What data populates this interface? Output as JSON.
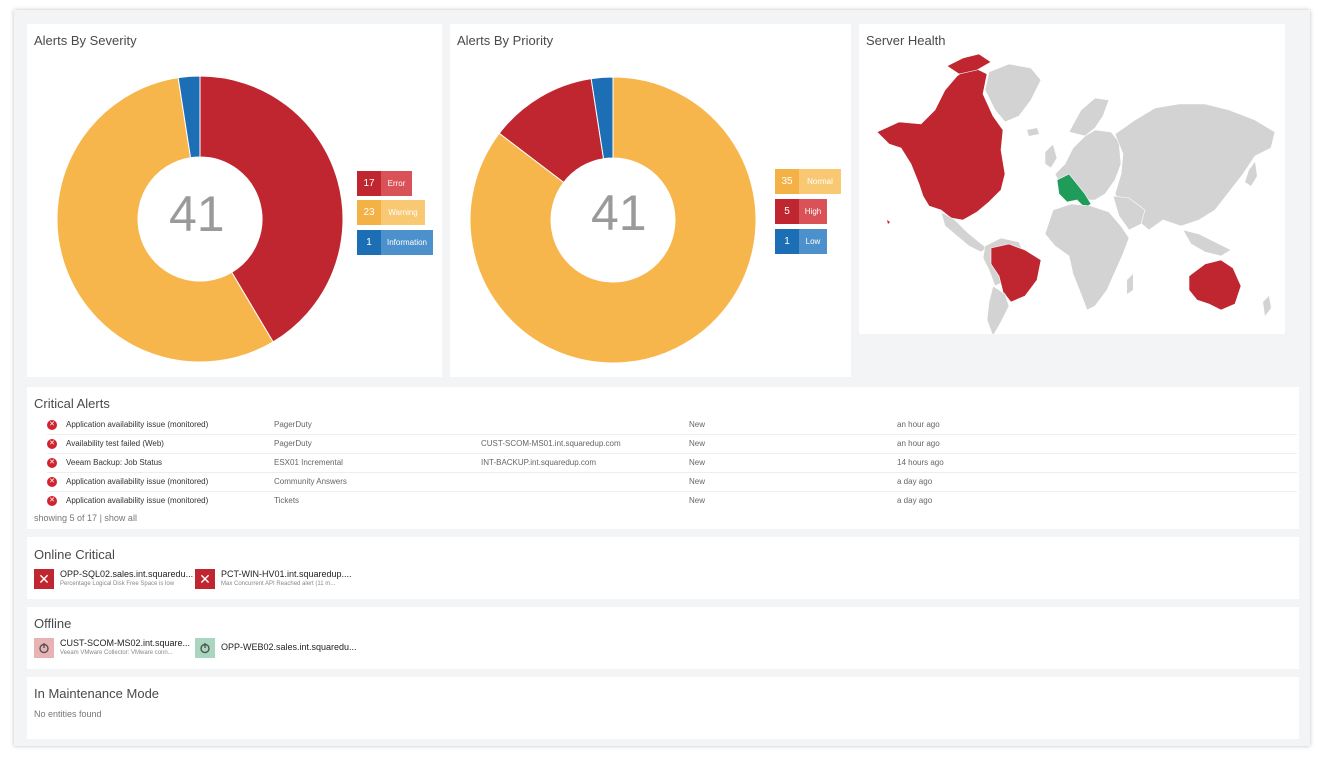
{
  "severity": {
    "title": "Alerts By Severity",
    "total": "41",
    "legend": [
      {
        "count": "17",
        "label": "Error",
        "dark": "#c0262f",
        "light": "#d95257"
      },
      {
        "count": "23",
        "label": "Warning",
        "dark": "#f4b146",
        "light": "#f8c873"
      },
      {
        "count": "1",
        "label": "Information",
        "dark": "#1c6fb5",
        "light": "#4d91cc"
      }
    ]
  },
  "priority": {
    "title": "Alerts By Priority",
    "total": "41",
    "legend": [
      {
        "count": "35",
        "label": "Normal",
        "dark": "#f4b146",
        "light": "#f8c873"
      },
      {
        "count": "5",
        "label": "High",
        "dark": "#c0262f",
        "light": "#d95257"
      },
      {
        "count": "1",
        "label": "Low",
        "dark": "#1c6fb5",
        "light": "#4d91cc"
      }
    ]
  },
  "chart_data": [
    {
      "type": "pie",
      "title": "Alerts By Severity",
      "categories": [
        "Error",
        "Warning",
        "Information"
      ],
      "values": [
        17,
        23,
        1
      ],
      "colors": [
        "#c0262f",
        "#f7b64b",
        "#1c6fb5"
      ],
      "center_label": "41"
    },
    {
      "type": "pie",
      "title": "Alerts By Priority",
      "categories": [
        "Normal",
        "High",
        "Low"
      ],
      "values": [
        35,
        5,
        1
      ],
      "colors": [
        "#f7b64b",
        "#c0262f",
        "#1c6fb5"
      ],
      "center_label": "41"
    }
  ],
  "map": {
    "title": "Server Health",
    "land_color": "#d3d3d3",
    "critical_color": "#c0262f",
    "healthy_color": "#1f9c5a"
  },
  "critical": {
    "title": "Critical Alerts",
    "rows": [
      {
        "name": "Application availability issue (monitored)",
        "source": "PagerDuty",
        "object": "",
        "status": "New",
        "time": "an hour ago"
      },
      {
        "name": "Availability test failed (Web)",
        "source": "PagerDuty",
        "object": "CUST-SCOM-MS01.int.squaredup.com",
        "status": "New",
        "time": "an hour ago"
      },
      {
        "name": "Veeam Backup: Job Status",
        "source": "ESX01 Incremental",
        "object": "INT-BACKUP.int.squaredup.com",
        "status": "New",
        "time": "14 hours ago"
      },
      {
        "name": "Application availability issue (monitored)",
        "source": "Community Answers",
        "object": "",
        "status": "New",
        "time": "a day ago"
      },
      {
        "name": "Application availability issue (monitored)",
        "source": "Tickets",
        "object": "",
        "status": "New",
        "time": "a day ago"
      }
    ],
    "showing": "showing 5 of 17",
    "separator": "|",
    "show_all": "show all"
  },
  "online_critical": {
    "title": "Online Critical",
    "tiles": [
      {
        "name": "OPP-SQL02.sales.int.squaredu...",
        "sub": "Percentage Logical Disk Free Space is low"
      },
      {
        "name": "PCT-WIN-HV01.int.squaredup....",
        "sub": "Max Concurrent API Reached alert (11 m..."
      }
    ]
  },
  "offline": {
    "title": "Offline",
    "tiles": [
      {
        "name": "CUST-SCOM-MS02.int.square...",
        "sub": "Veeam VMware Collector: VMware conn..."
      },
      {
        "name": "OPP-WEB02.sales.int.squaredu...",
        "sub": ""
      }
    ]
  },
  "maintenance": {
    "title": "In Maintenance Mode",
    "empty": "No entities found"
  }
}
